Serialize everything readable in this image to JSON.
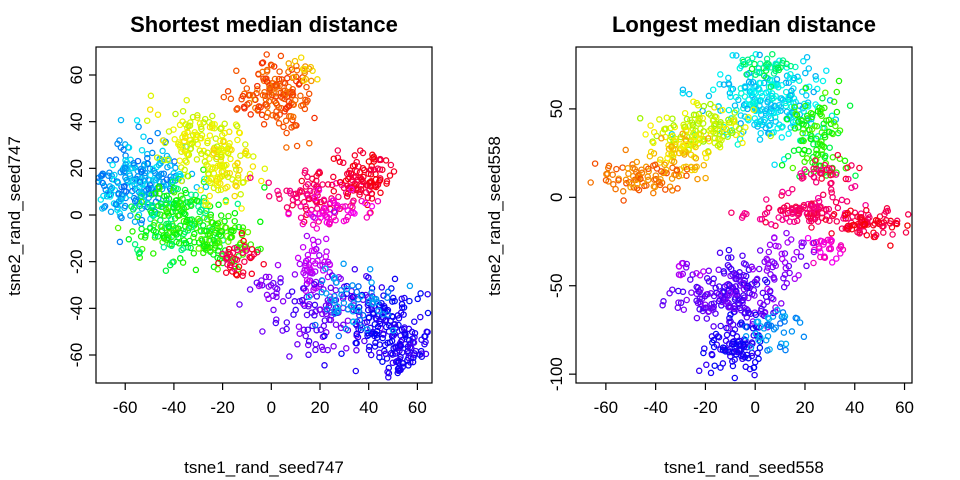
{
  "chart_data": [
    {
      "type": "scatter",
      "title": "Shortest median distance",
      "xlabel": "tsne1_rand_seed747",
      "ylabel": "tsne2_rand_seed747",
      "xlim": [
        -72,
        66
      ],
      "ylim": [
        -72,
        72
      ],
      "xticks": [
        -60,
        -40,
        -20,
        0,
        20,
        40,
        60
      ],
      "yticks": [
        -60,
        -40,
        -20,
        0,
        20,
        40,
        60
      ],
      "marker": "open-circle",
      "color_scale": "rainbow (hue 0-300)",
      "clusters": [
        {
          "cx": -55,
          "cy": 15,
          "sx": 10,
          "sy": 8,
          "n": 260,
          "hue": [
            180,
            215
          ]
        },
        {
          "cx": -38,
          "cy": -3,
          "sx": 9,
          "sy": 8,
          "n": 220,
          "hue": [
            95,
            160
          ]
        },
        {
          "cx": -22,
          "cy": -12,
          "sx": 7,
          "sy": 6,
          "n": 90,
          "hue": [
            90,
            130
          ]
        },
        {
          "cx": -28,
          "cy": 32,
          "sx": 8,
          "sy": 7,
          "n": 130,
          "hue": [
            55,
            75
          ]
        },
        {
          "cx": -18,
          "cy": 20,
          "sx": 6,
          "sy": 7,
          "n": 80,
          "hue": [
            50,
            70
          ]
        },
        {
          "cx": -2,
          "cy": 52,
          "sx": 7,
          "sy": 6,
          "n": 110,
          "hue": [
            10,
            30
          ]
        },
        {
          "cx": 8,
          "cy": 48,
          "sx": 4,
          "sy": 9,
          "n": 50,
          "hue": [
            10,
            28
          ]
        },
        {
          "cx": 13,
          "cy": 62,
          "sx": 3,
          "sy": 3,
          "n": 18,
          "hue": [
            25,
            55
          ]
        },
        {
          "cx": 18,
          "cy": 8,
          "sx": 9,
          "sy": 5,
          "n": 90,
          "hue": [
            320,
            350
          ]
        },
        {
          "cx": 38,
          "cy": 16,
          "sx": 6,
          "sy": 6,
          "n": 100,
          "hue": [
            340,
            360
          ]
        },
        {
          "cx": 27,
          "cy": 2,
          "sx": 8,
          "sy": 4,
          "n": 50,
          "hue": [
            300,
            320
          ]
        },
        {
          "cx": 17,
          "cy": -22,
          "sx": 4,
          "sy": 8,
          "n": 60,
          "hue": [
            275,
            295
          ]
        },
        {
          "cx": 22,
          "cy": -42,
          "sx": 10,
          "sy": 9,
          "n": 110,
          "hue": [
            255,
            275
          ]
        },
        {
          "cx": 45,
          "cy": -45,
          "sx": 9,
          "sy": 8,
          "n": 130,
          "hue": [
            235,
            255
          ]
        },
        {
          "cx": 55,
          "cy": -58,
          "sx": 6,
          "sy": 6,
          "n": 90,
          "hue": [
            240,
            260
          ]
        },
        {
          "cx": 35,
          "cy": -40,
          "sx": 9,
          "sy": 7,
          "n": 60,
          "hue": [
            195,
            215
          ]
        },
        {
          "cx": 0,
          "cy": -30,
          "sx": 4,
          "sy": 3,
          "n": 20,
          "hue": [
            260,
            280
          ]
        },
        {
          "cx": -12,
          "cy": -18,
          "sx": 4,
          "sy": 5,
          "n": 40,
          "hue": [
            330,
            360
          ]
        }
      ]
    },
    {
      "type": "scatter",
      "title": "Longest median distance",
      "xlabel": "tsne1_rand_seed558",
      "ylabel": "tsne2_rand_seed558",
      "xlim": [
        -72,
        63
      ],
      "ylim": [
        -105,
        85
      ],
      "xticks": [
        -60,
        -40,
        -20,
        0,
        20,
        40,
        60
      ],
      "yticks": [
        -100,
        -50,
        0,
        50
      ],
      "marker": "open-circle",
      "color_scale": "rainbow (hue 0-300)",
      "clusters": [
        {
          "cx": 5,
          "cy": 55,
          "sx": 10,
          "sy": 12,
          "n": 260,
          "hue": [
            170,
            200
          ]
        },
        {
          "cx": -22,
          "cy": 38,
          "sx": 9,
          "sy": 7,
          "n": 140,
          "hue": [
            55,
            85
          ]
        },
        {
          "cx": -30,
          "cy": 25,
          "sx": 6,
          "sy": 6,
          "n": 60,
          "hue": [
            40,
            60
          ]
        },
        {
          "cx": -45,
          "cy": 12,
          "sx": 10,
          "sy": 5,
          "n": 90,
          "hue": [
            18,
            40
          ]
        },
        {
          "cx": 26,
          "cy": 35,
          "sx": 6,
          "sy": 12,
          "n": 110,
          "hue": [
            95,
            140
          ]
        },
        {
          "cx": 4,
          "cy": 73,
          "sx": 6,
          "sy": 4,
          "n": 40,
          "hue": [
            130,
            170
          ]
        },
        {
          "cx": 28,
          "cy": 12,
          "sx": 6,
          "sy": 6,
          "n": 40,
          "hue": [
            320,
            350
          ]
        },
        {
          "cx": 20,
          "cy": -8,
          "sx": 12,
          "sy": 4,
          "n": 110,
          "hue": [
            320,
            345
          ]
        },
        {
          "cx": 45,
          "cy": -15,
          "sx": 9,
          "sy": 4,
          "n": 90,
          "hue": [
            335,
            360
          ]
        },
        {
          "cx": 30,
          "cy": -28,
          "sx": 4,
          "sy": 4,
          "n": 30,
          "hue": [
            300,
            320
          ]
        },
        {
          "cx": -6,
          "cy": -55,
          "sx": 7,
          "sy": 10,
          "n": 150,
          "hue": [
            250,
            275
          ]
        },
        {
          "cx": -8,
          "cy": -85,
          "sx": 6,
          "sy": 8,
          "n": 110,
          "hue": [
            235,
            255
          ]
        },
        {
          "cx": -22,
          "cy": -58,
          "sx": 7,
          "sy": 5,
          "n": 50,
          "hue": [
            255,
            275
          ]
        },
        {
          "cx": 10,
          "cy": -40,
          "sx": 6,
          "sy": 8,
          "n": 50,
          "hue": [
            265,
            285
          ]
        },
        {
          "cx": 5,
          "cy": -75,
          "sx": 6,
          "sy": 6,
          "n": 40,
          "hue": [
            195,
            215
          ]
        },
        {
          "cx": -28,
          "cy": -40,
          "sx": 3,
          "sy": 3,
          "n": 12,
          "hue": [
            270,
            290
          ]
        }
      ]
    }
  ]
}
